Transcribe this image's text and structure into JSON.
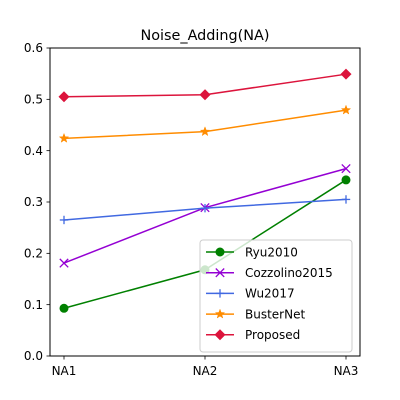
{
  "chart_data": {
    "type": "line",
    "title": "Noise_Adding(NA)",
    "xlabel": "",
    "ylabel": "",
    "categories": [
      "NA1",
      "NA2",
      "NA3"
    ],
    "ylim": [
      0,
      0.6
    ],
    "yticks": [
      0.0,
      0.1,
      0.2,
      0.3,
      0.4,
      0.5,
      0.6
    ],
    "ytick_labels": [
      "0.0",
      "0.1",
      "0.2",
      "0.3",
      "0.4",
      "0.5",
      "0.6"
    ],
    "grid": false,
    "legend_position": "lower-right",
    "series": [
      {
        "name": "Ryu2010",
        "values": [
          0.093,
          0.168,
          0.343
        ],
        "color": "#008000",
        "marker": "circle"
      },
      {
        "name": "Cozzolino2015",
        "values": [
          0.181,
          0.289,
          0.365
        ],
        "color": "#9400D3",
        "marker": "x"
      },
      {
        "name": "Wu2017",
        "values": [
          0.265,
          0.288,
          0.305
        ],
        "color": "#4169E1",
        "marker": "plus"
      },
      {
        "name": "BusterNet",
        "values": [
          0.424,
          0.437,
          0.479
        ],
        "color": "#FF8C00",
        "marker": "star"
      },
      {
        "name": "Proposed",
        "values": [
          0.505,
          0.509,
          0.549
        ],
        "color": "#DC143C",
        "marker": "diamond"
      }
    ]
  }
}
